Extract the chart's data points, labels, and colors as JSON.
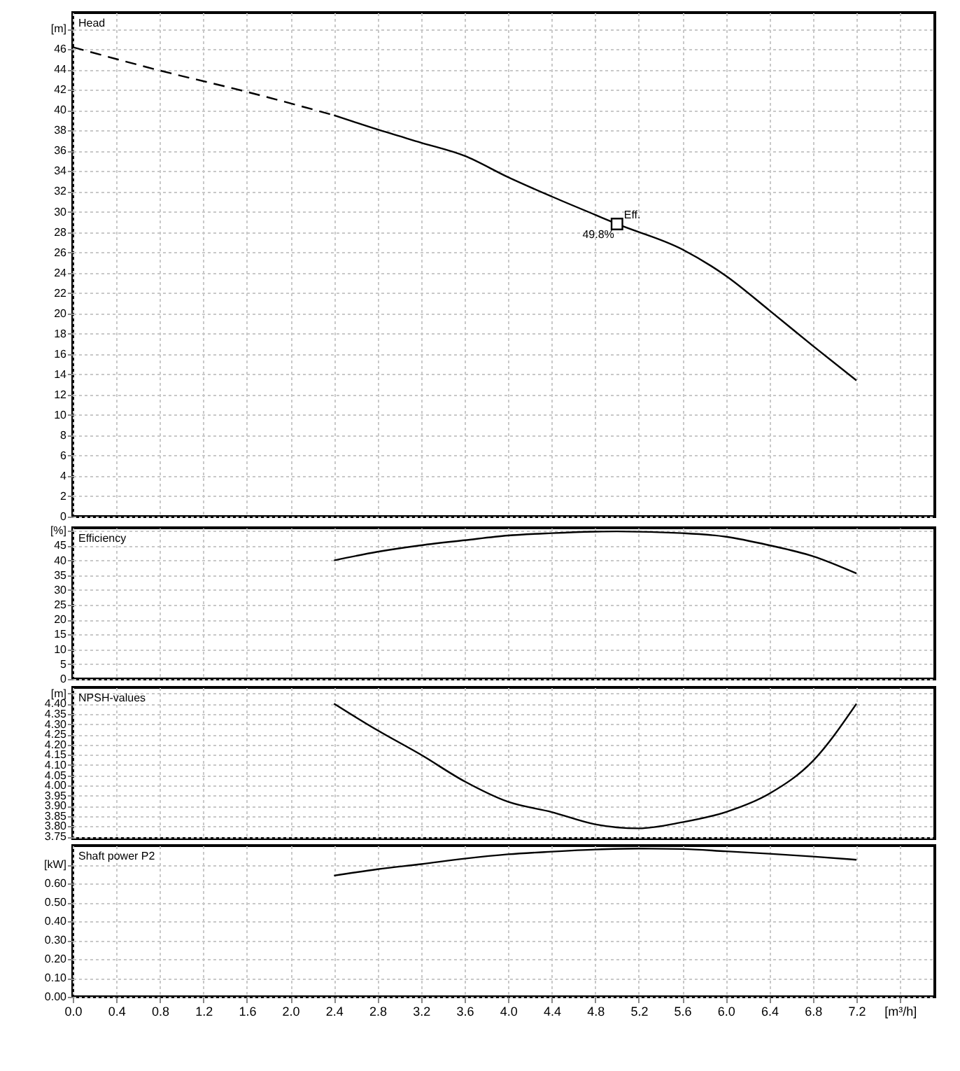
{
  "chart_data": [
    {
      "type": "line",
      "title": "Head",
      "xlim": [
        0,
        7.92
      ],
      "xticks": [
        0,
        0.4,
        0.8,
        1.2,
        1.6,
        2.0,
        2.4,
        2.8,
        3.2,
        3.6,
        4.0,
        4.4,
        4.8,
        5.2,
        5.6,
        6.0,
        6.4,
        6.8,
        7.2,
        7.6
      ],
      "ylim": [
        0,
        49.6
      ],
      "yticks": [
        0,
        2,
        4,
        6,
        8,
        10,
        12,
        14,
        16,
        18,
        20,
        22,
        24,
        26,
        28,
        30,
        32,
        34,
        36,
        38,
        40,
        42,
        44,
        46,
        {
          "value": 48,
          "label": "[m]"
        }
      ],
      "grid": true,
      "tick_labels": "y",
      "series": [
        {
          "type": "line",
          "color": "#000000",
          "line_style": "dashed",
          "x": [
            0,
            0.8,
            1.6,
            2.4
          ],
          "values": [
            46.2,
            43.9,
            41.8,
            39.5
          ]
        },
        {
          "type": "line",
          "color": "#000000",
          "line_style": "solid",
          "x": [
            2.4,
            2.8,
            3.2,
            3.6,
            4.0,
            4.4,
            4.8,
            5.0,
            5.6,
            6.0,
            6.4,
            6.8,
            7.2
          ],
          "values": [
            39.5,
            38.1,
            36.8,
            35.5,
            33.4,
            31.5,
            29.7,
            28.8,
            26.3,
            23.7,
            20.3,
            16.8,
            13.4
          ]
        },
        {
          "type": "scatter",
          "color": "#000000",
          "marker": "square",
          "x": [
            5.0
          ],
          "values": [
            28.8
          ]
        }
      ],
      "annotations": [
        {
          "text": "Eff.",
          "x": 5.0,
          "y": 28.8
        },
        {
          "text": "49.8%",
          "x": 5.0,
          "y": 28.8
        }
      ]
    },
    {
      "type": "line",
      "title": "Efficiency",
      "xlim": [
        0,
        7.92
      ],
      "xticks": [
        0,
        0.4,
        0.8,
        1.2,
        1.6,
        2.0,
        2.4,
        2.8,
        3.2,
        3.6,
        4.0,
        4.4,
        4.8,
        5.2,
        5.6,
        6.0,
        6.4,
        6.8,
        7.2,
        7.6
      ],
      "ylim": [
        0,
        51
      ],
      "yticks": [
        0,
        5,
        10,
        15,
        20,
        25,
        30,
        35,
        40,
        45,
        {
          "value": 50,
          "label": "[%]"
        }
      ],
      "grid": true,
      "tick_labels": "y",
      "series": [
        {
          "type": "line",
          "color": "#000000",
          "line_style": "solid",
          "x": [
            2.4,
            2.8,
            3.2,
            3.6,
            4.0,
            4.4,
            4.8,
            5.0,
            5.6,
            6.0,
            6.4,
            6.8,
            7.2
          ],
          "values": [
            40,
            42.9,
            45.1,
            46.8,
            48.4,
            49.2,
            49.7,
            49.8,
            49.2,
            48.0,
            45.1,
            41.4,
            35.6
          ]
        }
      ]
    },
    {
      "type": "line",
      "title": "NPSH-values",
      "xlim": [
        0,
        7.92
      ],
      "xticks": [
        0,
        0.4,
        0.8,
        1.2,
        1.6,
        2.0,
        2.4,
        2.8,
        3.2,
        3.6,
        4.0,
        4.4,
        4.8,
        5.2,
        5.6,
        6.0,
        6.4,
        6.8,
        7.2,
        7.6
      ],
      "ylim": [
        3.74,
        4.48
      ],
      "yticks": [
        {
          "value": 3.75,
          "label": "3.75"
        },
        {
          "value": 3.8,
          "label": "3.80"
        },
        {
          "value": 3.85,
          "label": "3.85"
        },
        {
          "value": 3.9,
          "label": "3.90"
        },
        {
          "value": 3.95,
          "label": "3.95"
        },
        {
          "value": 4.0,
          "label": "4.00"
        },
        {
          "value": 4.05,
          "label": "4.05"
        },
        {
          "value": 4.1,
          "label": "4.10"
        },
        {
          "value": 4.15,
          "label": "4.15"
        },
        {
          "value": 4.2,
          "label": "4.20"
        },
        {
          "value": 4.25,
          "label": "4.25"
        },
        {
          "value": 4.3,
          "label": "4.30"
        },
        {
          "value": 4.35,
          "label": "4.35"
        },
        {
          "value": 4.4,
          "label": "4.40"
        },
        {
          "value": 4.45,
          "label": "[m]"
        }
      ],
      "grid": true,
      "tick_labels": "y",
      "series": [
        {
          "type": "line",
          "color": "#000000",
          "line_style": "solid",
          "x": [
            2.4,
            2.8,
            3.2,
            3.6,
            4.0,
            4.4,
            4.8,
            5.2,
            5.6,
            6.0,
            6.4,
            6.8,
            7.2
          ],
          "values": [
            4.4,
            4.27,
            4.15,
            4.02,
            3.92,
            3.87,
            3.81,
            3.79,
            3.82,
            3.87,
            3.96,
            4.12,
            4.4
          ]
        }
      ]
    },
    {
      "type": "line",
      "title": "Shaft power P2",
      "xlim": [
        0,
        7.92
      ],
      "xticks": [
        {
          "value": 0,
          "label": "0.0"
        },
        0.4,
        0.8,
        1.2,
        1.6,
        {
          "value": 2,
          "label": "2.0"
        },
        2.4,
        2.8,
        3.2,
        3.6,
        {
          "value": 4,
          "label": "4.0"
        },
        4.4,
        4.8,
        5.2,
        5.6,
        {
          "value": 6,
          "label": "6.0"
        },
        6.4,
        6.8,
        7.2,
        {
          "value": 7.6,
          "label": "[m³/h]"
        }
      ],
      "ylim": [
        0,
        0.8
      ],
      "yticks": [
        {
          "value": 0,
          "label": "0.00"
        },
        {
          "value": 0.1,
          "label": "0.10"
        },
        {
          "value": 0.2,
          "label": "0.20"
        },
        {
          "value": 0.3,
          "label": "0.30"
        },
        {
          "value": 0.4,
          "label": "0.40"
        },
        {
          "value": 0.5,
          "label": "0.50"
        },
        {
          "value": 0.6,
          "label": "0.60"
        },
        {
          "value": 0.7,
          "label": "[kW]"
        }
      ],
      "grid": true,
      "series": [
        {
          "type": "line",
          "color": "#000000",
          "line_style": "solid",
          "x": [
            2.4,
            2.8,
            3.2,
            3.6,
            4.0,
            4.4,
            4.8,
            5.2,
            5.6,
            6.0,
            6.4,
            6.8,
            7.2
          ],
          "values": [
            0.641,
            0.675,
            0.702,
            0.731,
            0.754,
            0.768,
            0.779,
            0.784,
            0.782,
            0.77,
            0.757,
            0.742,
            0.725
          ]
        }
      ]
    }
  ]
}
